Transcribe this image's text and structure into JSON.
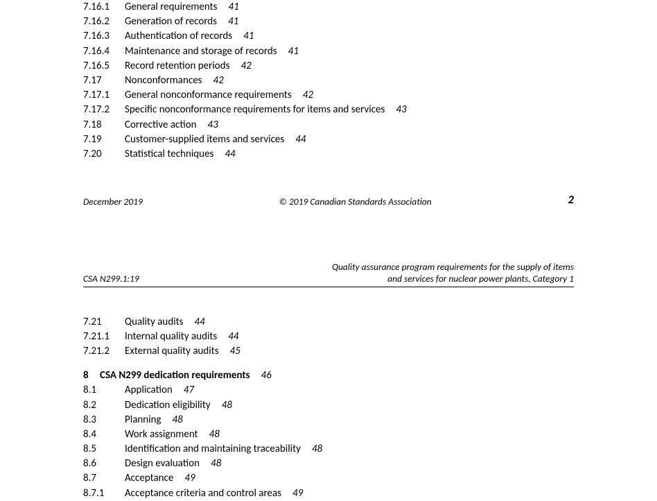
{
  "top_entries": [
    {
      "num": "7.16.1",
      "title": "General requirements",
      "page": "41"
    },
    {
      "num": "7.16.2",
      "title": "Generation of records",
      "page": "41"
    },
    {
      "num": "7.16.3",
      "title": "Authentication of records",
      "page": "41"
    },
    {
      "num": "7.16.4",
      "title": "Maintenance and storage of records",
      "page": "41"
    },
    {
      "num": "7.16.5",
      "title": "Record retention periods",
      "page": "42"
    },
    {
      "num": "7.17",
      "title": "Nonconformances",
      "page": "42"
    },
    {
      "num": "7.17.1",
      "title": "General nonconformance requirements",
      "page": "42"
    },
    {
      "num": "7.17.2",
      "title": "Specific nonconformance requirements for items and services",
      "page": "43"
    },
    {
      "num": "7.18",
      "title": "Corrective action",
      "page": "43"
    },
    {
      "num": "7.19",
      "title": "Customer-supplied items and services",
      "page": "44"
    },
    {
      "num": "7.20",
      "title": "Statistical techniques",
      "page": "44"
    }
  ],
  "footer": {
    "left": "December 2019",
    "center": "© 2019 Canadian Standards Association",
    "pagenum": "2"
  },
  "running_head": {
    "left": "CSA N299.1:19",
    "right_line1": "Quality assurance program requirements for the supply of items",
    "right_line2": "and services for nuclear power plants, Category 1"
  },
  "mid_entries": [
    {
      "num": "7.21",
      "title": "Quality audits",
      "page": "44"
    },
    {
      "num": "7.21.1",
      "title": "Internal quality audits",
      "page": "44"
    },
    {
      "num": "7.21.2",
      "title": "External quality audits",
      "page": "45"
    }
  ],
  "section8": {
    "num": "8",
    "title": "CSA N299 dedication requirements",
    "page": "46"
  },
  "sec8_entries": [
    {
      "num": "8.1",
      "title": "Application",
      "page": "47"
    },
    {
      "num": "8.2",
      "title": "Dedication eligibility",
      "page": "48"
    },
    {
      "num": "8.3",
      "title": "Planning",
      "page": "48"
    },
    {
      "num": "8.4",
      "title": "Work assignment",
      "page": "48"
    },
    {
      "num": "8.5",
      "title": "Identification and maintaining traceability",
      "page": "48"
    },
    {
      "num": "8.6",
      "title": "Design evaluation",
      "page": "48"
    },
    {
      "num": "8.7",
      "title": "Acceptance",
      "page": "49"
    },
    {
      "num": "8.7.1",
      "title": "Acceptance criteria and control areas",
      "page": "49"
    }
  ]
}
